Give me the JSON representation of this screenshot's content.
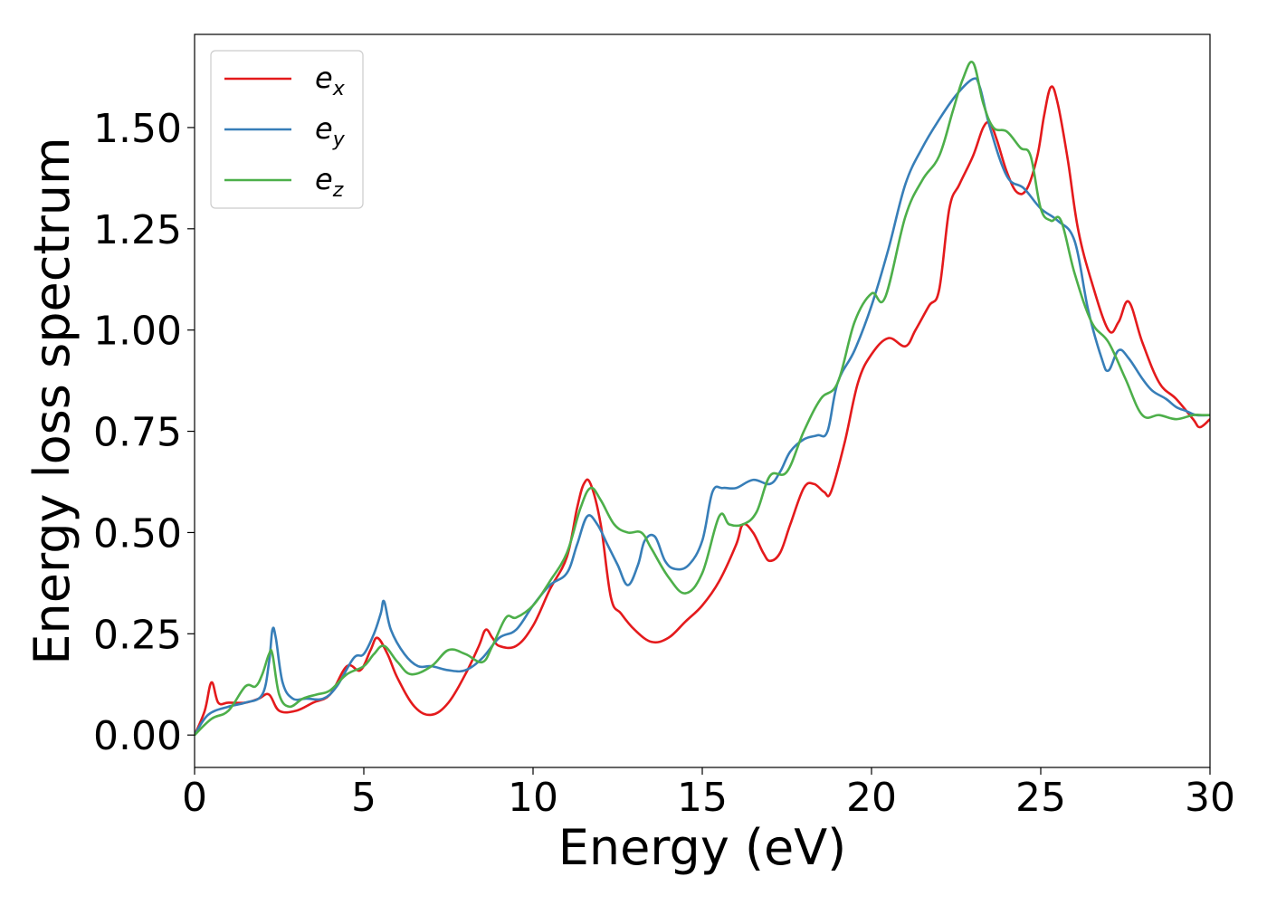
{
  "chart_data": {
    "type": "line",
    "xlabel": "Energy (eV)",
    "ylabel": "Energy loss spectrum",
    "xlim": [
      0,
      30
    ],
    "ylim": [
      -0.08,
      1.73
    ],
    "xticks": [
      0,
      5,
      10,
      15,
      20,
      25,
      30
    ],
    "xtick_labels": [
      "0",
      "5",
      "10",
      "15",
      "20",
      "25",
      "30"
    ],
    "yticks": [
      0.0,
      0.25,
      0.5,
      0.75,
      1.0,
      1.25,
      1.5
    ],
    "ytick_labels": [
      "0.00",
      "0.25",
      "0.50",
      "0.75",
      "1.00",
      "1.25",
      "1.50"
    ],
    "grid": false,
    "legend_position": "top-left",
    "series": [
      {
        "name": "e",
        "subscript": "x",
        "color": "#e41a1c",
        "x": [
          0,
          0.3,
          0.5,
          0.7,
          1.0,
          1.5,
          1.9,
          2.2,
          2.5,
          3.0,
          3.5,
          4.0,
          4.5,
          4.9,
          5.2,
          5.4,
          5.7,
          6.0,
          6.5,
          7.0,
          7.5,
          8.0,
          8.4,
          8.6,
          8.8,
          9.0,
          9.5,
          10.0,
          10.5,
          11.0,
          11.3,
          11.5,
          11.7,
          12.0,
          12.3,
          12.6,
          13.0,
          13.5,
          14.0,
          14.5,
          15.0,
          15.5,
          16.0,
          16.2,
          16.5,
          16.8,
          17.0,
          17.3,
          17.6,
          18.0,
          18.3,
          18.6,
          18.8,
          19.2,
          19.6,
          20.0,
          20.5,
          21.0,
          21.3,
          21.7,
          22.0,
          22.3,
          22.6,
          23.0,
          23.3,
          23.5,
          23.7,
          24.0,
          24.3,
          24.6,
          24.9,
          25.1,
          25.3,
          25.5,
          25.8,
          26.1,
          26.5,
          27.0,
          27.3,
          27.6,
          28.0,
          28.5,
          29.0,
          29.5,
          29.7,
          30.0
        ],
        "y": [
          0.0,
          0.06,
          0.13,
          0.08,
          0.08,
          0.08,
          0.09,
          0.1,
          0.06,
          0.06,
          0.08,
          0.1,
          0.17,
          0.16,
          0.21,
          0.24,
          0.2,
          0.14,
          0.07,
          0.05,
          0.08,
          0.15,
          0.22,
          0.26,
          0.24,
          0.22,
          0.22,
          0.27,
          0.36,
          0.44,
          0.56,
          0.62,
          0.62,
          0.52,
          0.34,
          0.3,
          0.26,
          0.23,
          0.24,
          0.28,
          0.32,
          0.38,
          0.47,
          0.52,
          0.5,
          0.45,
          0.43,
          0.45,
          0.52,
          0.61,
          0.62,
          0.6,
          0.6,
          0.72,
          0.87,
          0.94,
          0.98,
          0.96,
          1.0,
          1.06,
          1.1,
          1.3,
          1.36,
          1.43,
          1.5,
          1.51,
          1.47,
          1.39,
          1.34,
          1.35,
          1.43,
          1.53,
          1.6,
          1.56,
          1.42,
          1.25,
          1.12,
          1.0,
          1.02,
          1.07,
          0.97,
          0.87,
          0.83,
          0.78,
          0.76,
          0.78
        ]
      },
      {
        "name": "e",
        "subscript": "y",
        "color": "#377eb8",
        "x": [
          0,
          0.4,
          1.0,
          1.5,
          2.0,
          2.2,
          2.3,
          2.4,
          2.6,
          2.9,
          3.3,
          3.8,
          4.2,
          4.7,
          5.0,
          5.3,
          5.5,
          5.6,
          5.8,
          6.2,
          6.6,
          7.0,
          7.5,
          8.0,
          8.5,
          9.0,
          9.5,
          10.0,
          10.5,
          11.0,
          11.3,
          11.6,
          11.9,
          12.2,
          12.5,
          12.8,
          13.1,
          13.3,
          13.6,
          13.9,
          14.2,
          14.6,
          15.0,
          15.3,
          15.6,
          16.0,
          16.5,
          17.0,
          17.3,
          17.6,
          18.0,
          18.4,
          18.7,
          19.0,
          19.5,
          20.0,
          20.5,
          21.0,
          21.5,
          22.0,
          22.5,
          23.0,
          23.2,
          23.5,
          24.0,
          24.5,
          25.0,
          25.5,
          26.0,
          26.4,
          26.8,
          27.0,
          27.3,
          27.6,
          28.0,
          28.3,
          28.7,
          29.0,
          29.3,
          29.6,
          30.0
        ],
        "y": [
          0.0,
          0.05,
          0.07,
          0.08,
          0.1,
          0.18,
          0.26,
          0.24,
          0.13,
          0.09,
          0.09,
          0.09,
          0.12,
          0.19,
          0.2,
          0.25,
          0.3,
          0.33,
          0.26,
          0.2,
          0.17,
          0.17,
          0.16,
          0.16,
          0.19,
          0.24,
          0.26,
          0.32,
          0.37,
          0.4,
          0.47,
          0.54,
          0.52,
          0.47,
          0.42,
          0.37,
          0.42,
          0.48,
          0.49,
          0.43,
          0.41,
          0.42,
          0.48,
          0.6,
          0.61,
          0.61,
          0.63,
          0.62,
          0.65,
          0.7,
          0.73,
          0.74,
          0.75,
          0.87,
          0.95,
          1.06,
          1.2,
          1.36,
          1.45,
          1.52,
          1.58,
          1.62,
          1.6,
          1.5,
          1.38,
          1.35,
          1.3,
          1.27,
          1.22,
          1.05,
          0.93,
          0.9,
          0.95,
          0.93,
          0.88,
          0.85,
          0.83,
          0.81,
          0.8,
          0.79,
          0.79
        ]
      },
      {
        "name": "e",
        "subscript": "z",
        "color": "#4daf4a",
        "x": [
          0,
          0.5,
          1.0,
          1.5,
          1.8,
          2.0,
          2.2,
          2.3,
          2.5,
          2.8,
          3.2,
          3.6,
          4.0,
          4.5,
          5.0,
          5.3,
          5.6,
          6.0,
          6.4,
          7.0,
          7.5,
          8.0,
          8.5,
          8.8,
          9.2,
          9.5,
          10.0,
          10.5,
          11.0,
          11.4,
          11.7,
          12.0,
          12.4,
          12.8,
          13.2,
          13.5,
          14.0,
          14.5,
          15.0,
          15.5,
          15.8,
          16.2,
          16.6,
          17.0,
          17.5,
          18.0,
          18.5,
          19.0,
          19.5,
          20.0,
          20.4,
          21.0,
          21.5,
          22.0,
          22.4,
          22.7,
          23.0,
          23.3,
          23.6,
          24.0,
          24.4,
          24.7,
          25.0,
          25.3,
          25.6,
          26.0,
          26.5,
          27.0,
          27.5,
          28.0,
          28.5,
          29.0,
          29.5,
          29.8,
          30.0
        ],
        "y": [
          0.0,
          0.04,
          0.06,
          0.12,
          0.12,
          0.15,
          0.2,
          0.2,
          0.1,
          0.07,
          0.09,
          0.1,
          0.11,
          0.15,
          0.17,
          0.2,
          0.22,
          0.18,
          0.15,
          0.17,
          0.21,
          0.2,
          0.18,
          0.22,
          0.29,
          0.29,
          0.32,
          0.38,
          0.45,
          0.56,
          0.61,
          0.58,
          0.52,
          0.5,
          0.5,
          0.46,
          0.39,
          0.35,
          0.4,
          0.54,
          0.52,
          0.52,
          0.55,
          0.64,
          0.65,
          0.75,
          0.83,
          0.87,
          1.02,
          1.09,
          1.08,
          1.28,
          1.37,
          1.43,
          1.54,
          1.62,
          1.66,
          1.56,
          1.5,
          1.49,
          1.45,
          1.43,
          1.3,
          1.27,
          1.27,
          1.14,
          1.02,
          0.97,
          0.88,
          0.79,
          0.79,
          0.78,
          0.79,
          0.79,
          0.79
        ]
      }
    ]
  }
}
